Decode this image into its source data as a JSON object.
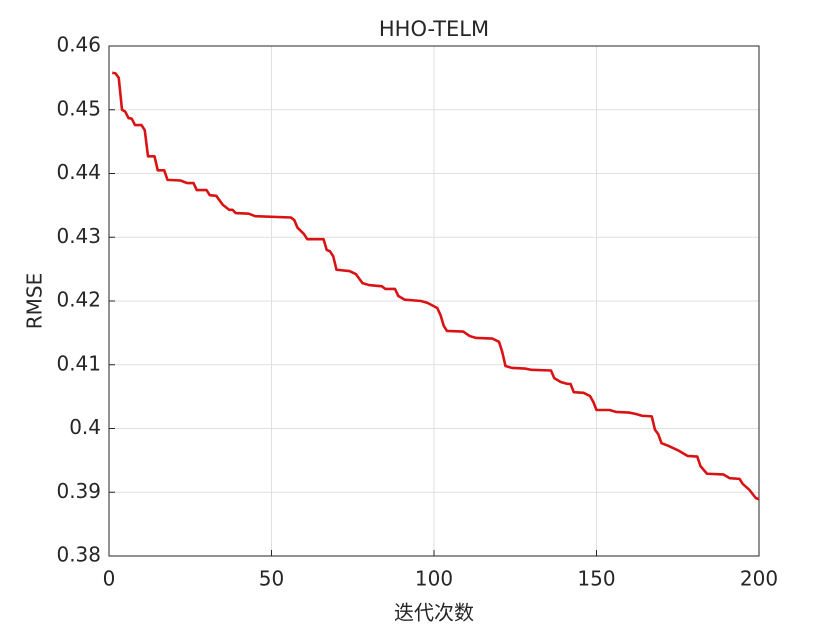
{
  "chart_data": {
    "type": "line",
    "title": "HHO-TELM",
    "xlabel": "迭代次数",
    "ylabel": "RMSE",
    "x": [
      1,
      2,
      3,
      4,
      5,
      6,
      7,
      8,
      10,
      11,
      12,
      14,
      15,
      17,
      18,
      22,
      24,
      26,
      27,
      30,
      31,
      33,
      35,
      37,
      38,
      39,
      43,
      45,
      56,
      57,
      58,
      60,
      61,
      66,
      67,
      68,
      69,
      70,
      74,
      76,
      78,
      80,
      84,
      85,
      88,
      89,
      91,
      96,
      98,
      101,
      102,
      103,
      104,
      109,
      111,
      113,
      118,
      120,
      121,
      122,
      124,
      128,
      130,
      136,
      137,
      139,
      141,
      142,
      143,
      146,
      148,
      149,
      150,
      154,
      156,
      160,
      162,
      164,
      167,
      168,
      169,
      170,
      172,
      175,
      178,
      181,
      182,
      184,
      189,
      191,
      194,
      195,
      197,
      199,
      200
    ],
    "values": [
      0.4558,
      0.4557,
      0.455,
      0.45,
      0.4497,
      0.4487,
      0.4486,
      0.4476,
      0.4476,
      0.4468,
      0.4427,
      0.4427,
      0.4405,
      0.4405,
      0.439,
      0.4389,
      0.4385,
      0.4385,
      0.4374,
      0.4374,
      0.4366,
      0.4365,
      0.4351,
      0.4343,
      0.4343,
      0.4338,
      0.4337,
      0.4333,
      0.4331,
      0.4327,
      0.4315,
      0.4305,
      0.4297,
      0.4297,
      0.428,
      0.4278,
      0.427,
      0.4249,
      0.4247,
      0.4242,
      0.4228,
      0.4225,
      0.4223,
      0.4219,
      0.4219,
      0.4208,
      0.4202,
      0.42,
      0.4197,
      0.4189,
      0.4178,
      0.4161,
      0.4153,
      0.4152,
      0.4145,
      0.4142,
      0.4141,
      0.4136,
      0.412,
      0.4098,
      0.4095,
      0.4094,
      0.4092,
      0.4091,
      0.4079,
      0.4073,
      0.407,
      0.407,
      0.4057,
      0.4056,
      0.4051,
      0.4042,
      0.4029,
      0.4029,
      0.4026,
      0.4025,
      0.4023,
      0.402,
      0.4019,
      0.3998,
      0.3991,
      0.3977,
      0.3973,
      0.3966,
      0.3957,
      0.3956,
      0.3941,
      0.3929,
      0.3928,
      0.3922,
      0.3921,
      0.3913,
      0.3904,
      0.3891,
      0.3889
    ],
    "color": "#d91313",
    "xlim": [
      0,
      200
    ],
    "xticks": [
      0,
      50,
      100,
      150,
      200
    ],
    "ylim": [
      0.38,
      0.46
    ],
    "yticks": [
      0.38,
      0.39,
      0.4,
      0.41,
      0.42,
      0.43,
      0.44,
      0.45,
      0.46
    ],
    "grid": true
  }
}
